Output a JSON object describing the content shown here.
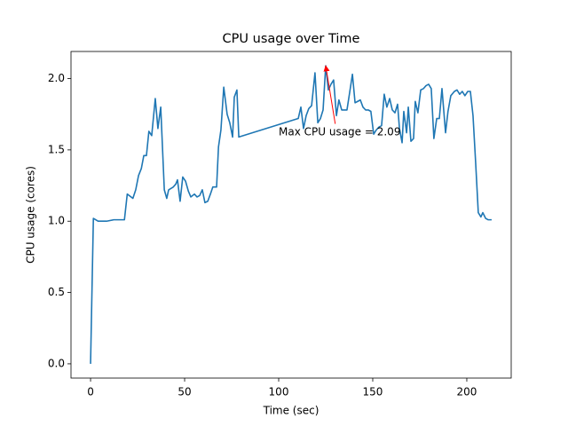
{
  "chart_data": {
    "type": "line",
    "title": "CPU usage over Time",
    "xlabel": "Time (sec)",
    "ylabel": "CPU usage (cores)",
    "x": [
      0,
      1.5,
      4,
      8.5,
      12.3,
      15.6,
      18,
      19.5,
      21.5,
      22.5,
      24,
      25.5,
      27,
      28.3,
      29.7,
      31,
      32.5,
      34.4,
      35.8,
      37.3,
      39.2,
      40.5,
      41.5,
      44,
      45.3,
      46.2,
      47.6,
      49,
      50.5,
      52,
      53.3,
      55.2,
      56.6,
      58,
      59.4,
      60.8,
      62.3,
      63.7,
      65,
      67,
      68,
      69.3,
      70.8,
      72.6,
      74,
      75.5,
      76.4,
      77.8,
      78.8,
      110.4,
      111.8,
      113.2,
      114.6,
      116,
      117.5,
      119.3,
      120.8,
      122.2,
      123.6,
      125,
      126.4,
      127.8,
      129.2,
      130.7,
      132,
      133.5,
      134.9,
      136.3,
      137.7,
      139.2,
      140.6,
      142,
      143.4,
      144.8,
      146.2,
      147.6,
      149,
      150.5,
      151.9,
      153.3,
      154.7,
      156.1,
      157.5,
      159,
      160.4,
      161.8,
      163.2,
      164.2,
      165.6,
      166.5,
      168,
      168.9,
      170.3,
      171.7,
      172.6,
      174,
      175.5,
      177,
      178.3,
      179.7,
      181.1,
      182.5,
      184,
      185.4,
      186.8,
      188.7,
      190,
      191.5,
      193.4,
      194.8,
      196.2,
      197.6,
      199,
      200.5,
      201.9,
      203.3,
      204.7,
      206.1,
      207.5,
      208.5,
      210,
      211.3,
      213.2
    ],
    "y": [
      0,
      1.02,
      1.0,
      1.0,
      1.01,
      1.01,
      1.01,
      1.19,
      1.17,
      1.16,
      1.22,
      1.32,
      1.37,
      1.46,
      1.46,
      1.63,
      1.6,
      1.86,
      1.65,
      1.8,
      1.22,
      1.16,
      1.22,
      1.24,
      1.26,
      1.29,
      1.14,
      1.31,
      1.28,
      1.21,
      1.17,
      1.19,
      1.17,
      1.18,
      1.22,
      1.13,
      1.14,
      1.19,
      1.24,
      1.24,
      1.52,
      1.64,
      1.94,
      1.75,
      1.69,
      1.59,
      1.87,
      1.92,
      1.59,
      1.72,
      1.8,
      1.65,
      1.74,
      1.79,
      1.81,
      2.04,
      1.69,
      1.72,
      1.78,
      2.09,
      1.92,
      1.96,
      1.99,
      1.74,
      1.85,
      1.78,
      1.78,
      1.78,
      1.9,
      2.03,
      1.83,
      1.84,
      1.85,
      1.8,
      1.78,
      1.78,
      1.77,
      1.61,
      1.64,
      1.66,
      1.67,
      1.89,
      1.8,
      1.86,
      1.78,
      1.76,
      1.82,
      1.65,
      1.55,
      1.77,
      1.62,
      1.8,
      1.56,
      1.58,
      1.84,
      1.76,
      1.92,
      1.93,
      1.95,
      1.96,
      1.93,
      1.58,
      1.72,
      1.72,
      1.93,
      1.62,
      1.77,
      1.88,
      1.91,
      1.92,
      1.89,
      1.91,
      1.88,
      1.91,
      1.91,
      1.74,
      1.41,
      1.06,
      1.03,
      1.06,
      1.02,
      1.01,
      1.01
    ],
    "color": "#1f77b4",
    "xlim": [
      -10.4,
      223.6
    ],
    "ylim": [
      -0.1,
      2.19
    ],
    "xticks": [
      0,
      50,
      100,
      150,
      200
    ],
    "yticks": [
      {
        "value": 0,
        "label": "0.0"
      },
      {
        "value": 0.5,
        "label": "0.5"
      },
      {
        "value": 1,
        "label": "1.0"
      },
      {
        "value": 1.5,
        "label": "1.5"
      },
      {
        "value": 2,
        "label": "2.0"
      }
    ],
    "annotation": {
      "text": "Max CPU usage = 2.09",
      "x": 125,
      "y": 2.09,
      "color": "red"
    }
  }
}
